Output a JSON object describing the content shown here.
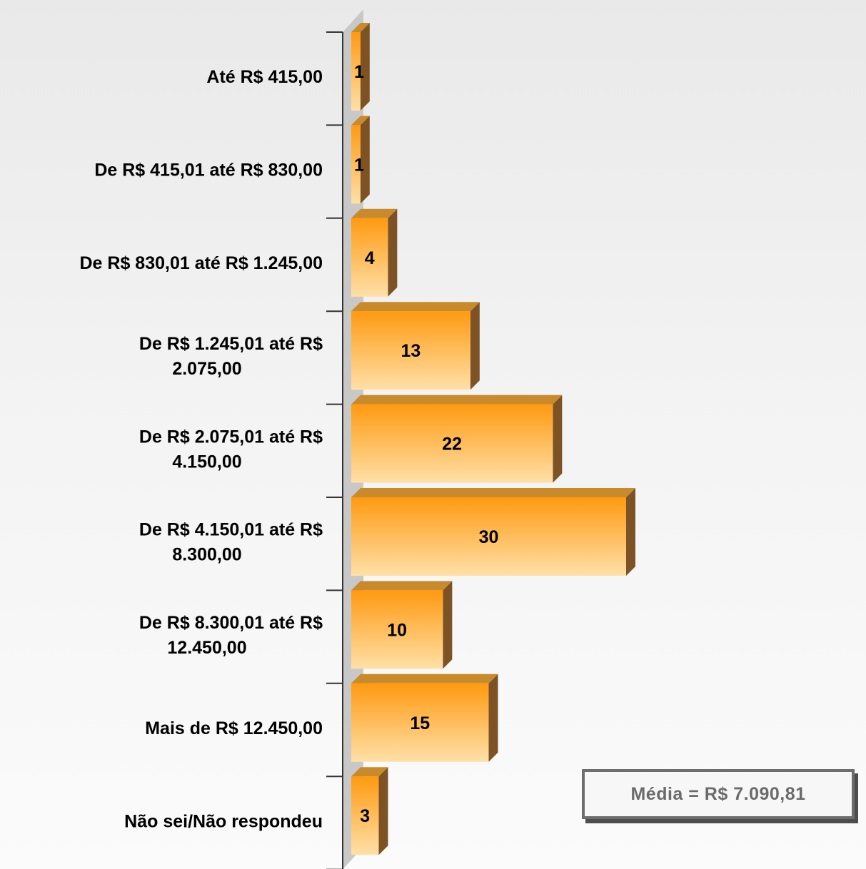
{
  "chart_data": {
    "type": "bar",
    "orientation": "horizontal",
    "categories": [
      [
        "Até R$ 415,00"
      ],
      [
        "De R$ 415,01 até R$ 830,00"
      ],
      [
        "De R$ 830,01 até R$ 1.245,00"
      ],
      [
        "De R$ 1.245,01 até R$",
        "2.075,00"
      ],
      [
        "De R$ 2.075,01 até R$",
        "4.150,00"
      ],
      [
        "De R$ 4.150,01 até R$",
        "8.300,00"
      ],
      [
        "De R$ 8.300,01 até R$",
        "12.450,00"
      ],
      [
        "Mais de R$ 12.450,00"
      ],
      [
        "Não sei/Não respondeu"
      ]
    ],
    "values": [
      1,
      1,
      4,
      13,
      22,
      30,
      10,
      15,
      3
    ],
    "data_labels": [
      "1",
      "1",
      "4",
      "13",
      "22",
      "30",
      "10",
      "15",
      "3"
    ],
    "xlim": [
      0,
      30
    ],
    "grid": false,
    "legend": "none",
    "colors": {
      "bar_top": "#ff9a10",
      "bar_bottom": "#ffe0a8",
      "bar_side": "#7d5326",
      "bar_cap": "#c98a2c",
      "axis_wall": "#c8c8c8",
      "axis_line": "#333333"
    }
  },
  "annotation": {
    "mean_label": "Média = R$ 7.090,81"
  }
}
